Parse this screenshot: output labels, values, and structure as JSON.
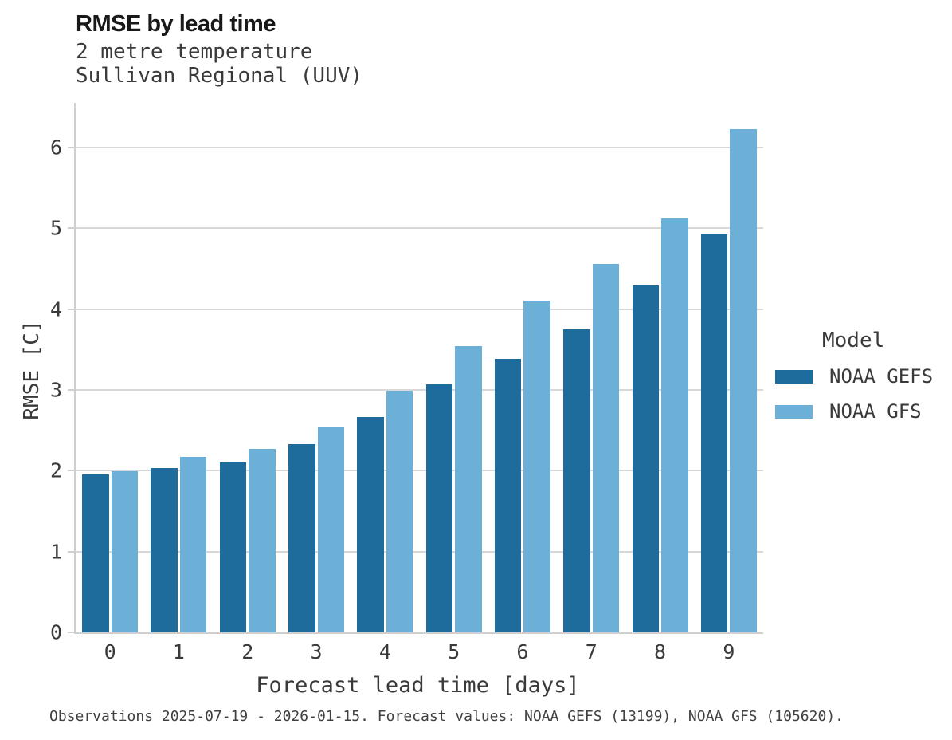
{
  "header": {
    "title": "RMSE by lead time",
    "subtitle_line1": "2 metre temperature",
    "subtitle_line2": "Sullivan Regional (UUV)"
  },
  "legend": {
    "title": "Model",
    "entries": [
      {
        "label": "NOAA GEFS",
        "color": "#1d6c9c"
      },
      {
        "label": "NOAA GFS",
        "color": "#6cb0d8"
      }
    ]
  },
  "footer": {
    "caption": "Observations 2025-07-19 - 2026-01-15. Forecast values: NOAA GEFS (13199), NOAA GFS (105620)."
  },
  "colors": {
    "series_dark": "#1d6c9c",
    "series_light": "#6cb0d8",
    "grid": "#d8d8d8",
    "axis": "#cfcfcf",
    "text": "#3a3a3a"
  },
  "chart_data": {
    "type": "bar",
    "title": "RMSE by lead time",
    "subtitle": [
      "2 metre temperature",
      "Sullivan Regional (UUV)"
    ],
    "categories": [
      "0",
      "1",
      "2",
      "3",
      "4",
      "5",
      "6",
      "7",
      "8",
      "9"
    ],
    "series": [
      {
        "name": "NOAA GEFS",
        "color": "#1d6c9c",
        "values": [
          1.95,
          2.03,
          2.1,
          2.33,
          2.66,
          3.07,
          3.38,
          3.75,
          4.29,
          4.92
        ]
      },
      {
        "name": "NOAA GFS",
        "color": "#6cb0d8",
        "values": [
          1.99,
          2.17,
          2.27,
          2.54,
          2.99,
          3.54,
          4.1,
          4.56,
          5.12,
          6.22
        ]
      }
    ],
    "xlabel": "Forecast lead time [days]",
    "ylabel": "RMSE [C]",
    "ylim": [
      0,
      6.55
    ],
    "yticks": [
      0,
      1,
      2,
      3,
      4,
      5,
      6
    ],
    "grid": "horizontal",
    "legend_title": "Model",
    "legend_position": "right"
  }
}
